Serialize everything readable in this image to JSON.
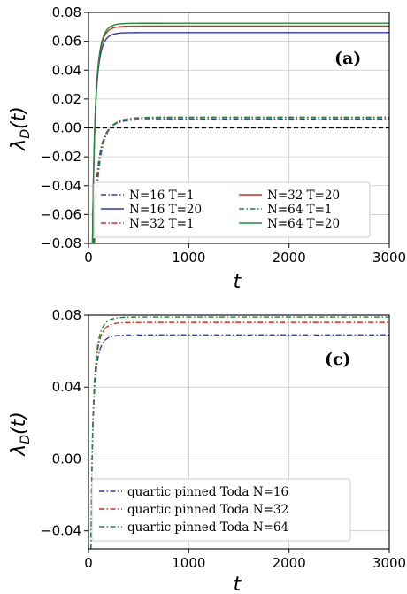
{
  "chart_data": [
    {
      "type": "line",
      "panel_label": "(a)",
      "xlabel": "t",
      "ylabel_main": "λ",
      "ylabel_sub": "D",
      "ylabel_tail": "(t)",
      "xlim": [
        0,
        3000
      ],
      "ylim": [
        -0.08,
        0.08
      ],
      "xticks": [
        0,
        1000,
        2000,
        3000
      ],
      "yticks": [
        -0.08,
        -0.06,
        -0.04,
        -0.02,
        0.0,
        0.02,
        0.04,
        0.06,
        0.08
      ],
      "ytick_labels": [
        "−0.08",
        "−0.06",
        "−0.04",
        "−0.02",
        "0.00",
        "0.02",
        "0.04",
        "0.06",
        "0.08"
      ],
      "xtick_labels": [
        "0",
        "1000",
        "2000",
        "3000"
      ],
      "grid": true,
      "reference_line": {
        "y": 0.0,
        "style": "dashed",
        "color": "#000000"
      },
      "legend_placement": "lower-right",
      "legend_columns": 2,
      "series": [
        {
          "name": "N=16 T=1",
          "style": "dashdot",
          "color": "#2b3bb0",
          "plateau": 0.006,
          "start": -0.08,
          "start_t": 50,
          "tau": 300
        },
        {
          "name": "N=16 T=20",
          "style": "solid",
          "color": "#2b3bb0",
          "plateau": 0.066,
          "start": -0.08,
          "start_t": 40,
          "tau": 150
        },
        {
          "name": "N=32 T=1",
          "style": "dashdot",
          "color": "#d62c20",
          "plateau": 0.007,
          "start": -0.08,
          "start_t": 55,
          "tau": 300
        },
        {
          "name": "N=32 T=20",
          "style": "solid",
          "color": "#d62c20",
          "plateau": 0.0705,
          "start": -0.08,
          "start_t": 40,
          "tau": 155
        },
        {
          "name": "N=64 T=1",
          "style": "dashdot",
          "color": "#1f8a3a",
          "plateau": 0.0075,
          "start": -0.08,
          "start_t": 60,
          "tau": 300
        },
        {
          "name": "N=64 T=20",
          "style": "solid",
          "color": "#1f8a3a",
          "plateau": 0.0725,
          "start": -0.08,
          "start_t": 40,
          "tau": 160
        }
      ]
    },
    {
      "type": "line",
      "panel_label": "(c)",
      "xlabel": "t",
      "ylabel_main": "λ",
      "ylabel_sub": "D",
      "ylabel_tail": "(t)",
      "xlim": [
        0,
        3000
      ],
      "ylim": [
        -0.05,
        0.08
      ],
      "xticks": [
        0,
        1000,
        2000,
        3000
      ],
      "yticks": [
        -0.04,
        0.0,
        0.04,
        0.08
      ],
      "ytick_labels": [
        "−0.04",
        "0.00",
        "0.04",
        "0.08"
      ],
      "xtick_labels": [
        "0",
        "1000",
        "2000",
        "3000"
      ],
      "grid": true,
      "legend_placement": "lower-left",
      "legend_columns": 1,
      "series": [
        {
          "name": "quartic pinned Toda N=16",
          "style": "dashdot",
          "color": "#2b3bb0",
          "plateau": 0.069,
          "start": -0.05,
          "start_t": 25,
          "tau": 170
        },
        {
          "name": "quartic pinned Toda N=32",
          "style": "dashdot",
          "color": "#d62c20",
          "plateau": 0.076,
          "start": -0.05,
          "start_t": 25,
          "tau": 180
        },
        {
          "name": "quartic pinned Toda N=64",
          "style": "dashdot",
          "color": "#1f8a3a",
          "plateau": 0.079,
          "start": -0.05,
          "start_t": 25,
          "tau": 185
        }
      ]
    }
  ]
}
